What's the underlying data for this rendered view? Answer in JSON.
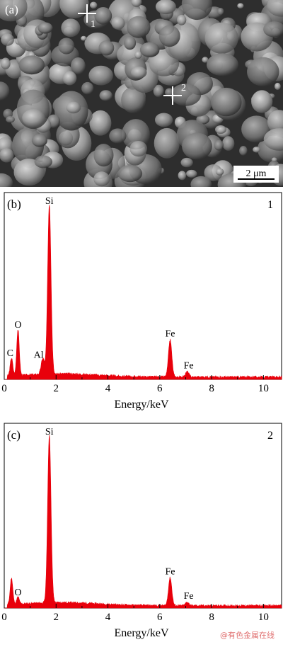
{
  "sem": {
    "panel_label": "(a)",
    "markers": [
      {
        "label": "1"
      },
      {
        "label": "2"
      }
    ],
    "scale_bar": "2 μm"
  },
  "watermark": "@有色金属在线",
  "chart_data": [
    {
      "type": "line",
      "panel_label": "(b)",
      "spectrum_label": "1",
      "xlabel": "Energy/keV",
      "ylabel": "",
      "xlim": [
        0,
        10.7
      ],
      "ylim": [
        0,
        1.0
      ],
      "xticks": [
        0,
        2,
        4,
        6,
        8,
        10
      ],
      "color": "#e8000b",
      "peaks": [
        {
          "x": 0.28,
          "y": 0.1,
          "label": "C"
        },
        {
          "x": 0.53,
          "y": 0.26,
          "label": "O"
        },
        {
          "x": 1.49,
          "y": 0.09,
          "label": "Al"
        },
        {
          "x": 1.74,
          "y": 0.96,
          "label": "Si"
        },
        {
          "x": 6.4,
          "y": 0.21,
          "label": "Fe"
        },
        {
          "x": 7.06,
          "y": 0.03,
          "label": "Fe"
        }
      ]
    },
    {
      "type": "line",
      "panel_label": "(c)",
      "spectrum_label": "2",
      "xlabel": "Energy/keV",
      "ylabel": "",
      "xlim": [
        0,
        10.7
      ],
      "ylim": [
        0,
        1.0
      ],
      "xticks": [
        0,
        2,
        4,
        6,
        8,
        10
      ],
      "color": "#e8000b",
      "peaks": [
        {
          "x": 0.28,
          "y": 0.15,
          "label": ""
        },
        {
          "x": 0.53,
          "y": 0.04,
          "label": "O"
        },
        {
          "x": 1.74,
          "y": 0.96,
          "label": "Si"
        },
        {
          "x": 6.4,
          "y": 0.16,
          "label": "Fe"
        },
        {
          "x": 7.06,
          "y": 0.02,
          "label": "Fe"
        }
      ]
    }
  ]
}
